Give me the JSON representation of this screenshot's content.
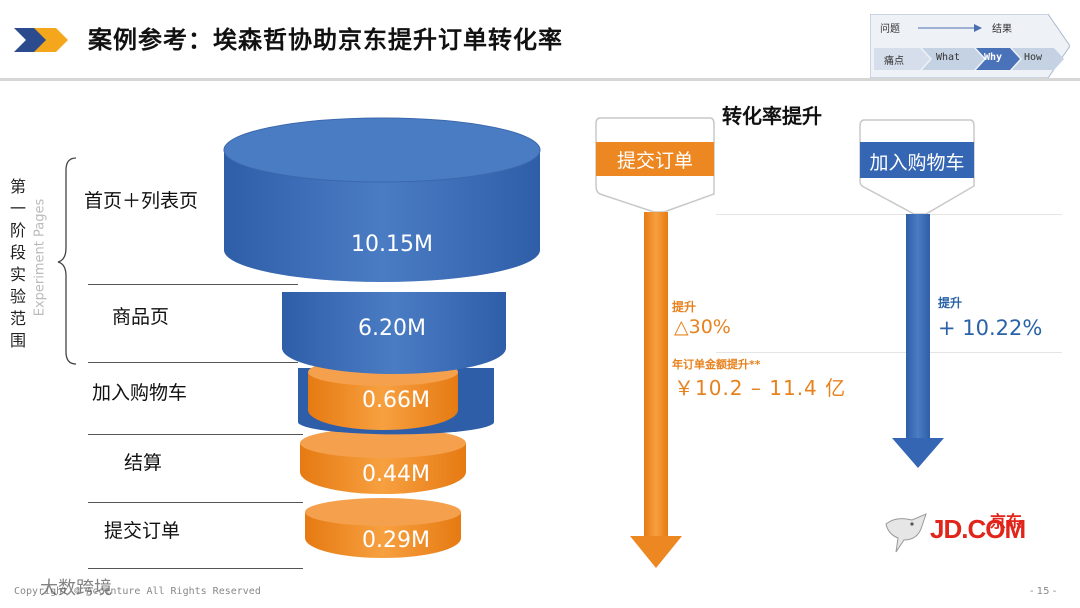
{
  "header": {
    "title": "案例参考：埃森哲协助京东提升订单转化率"
  },
  "progress": {
    "problem": "问题",
    "result": "结果",
    "steps": [
      "痛点",
      "What",
      "Why",
      "How"
    ],
    "active_step": "Why"
  },
  "left_bracket": {
    "label_cn": "第一阶段实验范围",
    "label_en": "Experiment Pages"
  },
  "stages": [
    "首页＋列表页",
    "商品页",
    "加入购物车",
    "结算",
    "提交订单"
  ],
  "funnel": [
    "10.15M",
    "6.20M",
    "0.66M",
    "0.44M",
    "0.29M"
  ],
  "right": {
    "heading": "转化率提升",
    "submit_order": {
      "label": "提交订单",
      "lift_label": "提升",
      "lift_value": "△30%",
      "annual_label": "年订单金额提升**",
      "annual_value": "￥10.2 – 11.4 亿"
    },
    "add_to_cart": {
      "label": "加入购物车",
      "lift_label": "提升",
      "lift_value": "+ 10.22%"
    }
  },
  "logo": {
    "text": "JD.COM",
    "cn": "京东"
  },
  "footer": {
    "copyright": "Copyright © Accenture All Rights Reserved",
    "page": "- 15 -",
    "watermark": "大数跨境"
  },
  "colors": {
    "blue": "#3d6db5",
    "orange": "#f08a24",
    "jd_red": "#e1251b"
  }
}
